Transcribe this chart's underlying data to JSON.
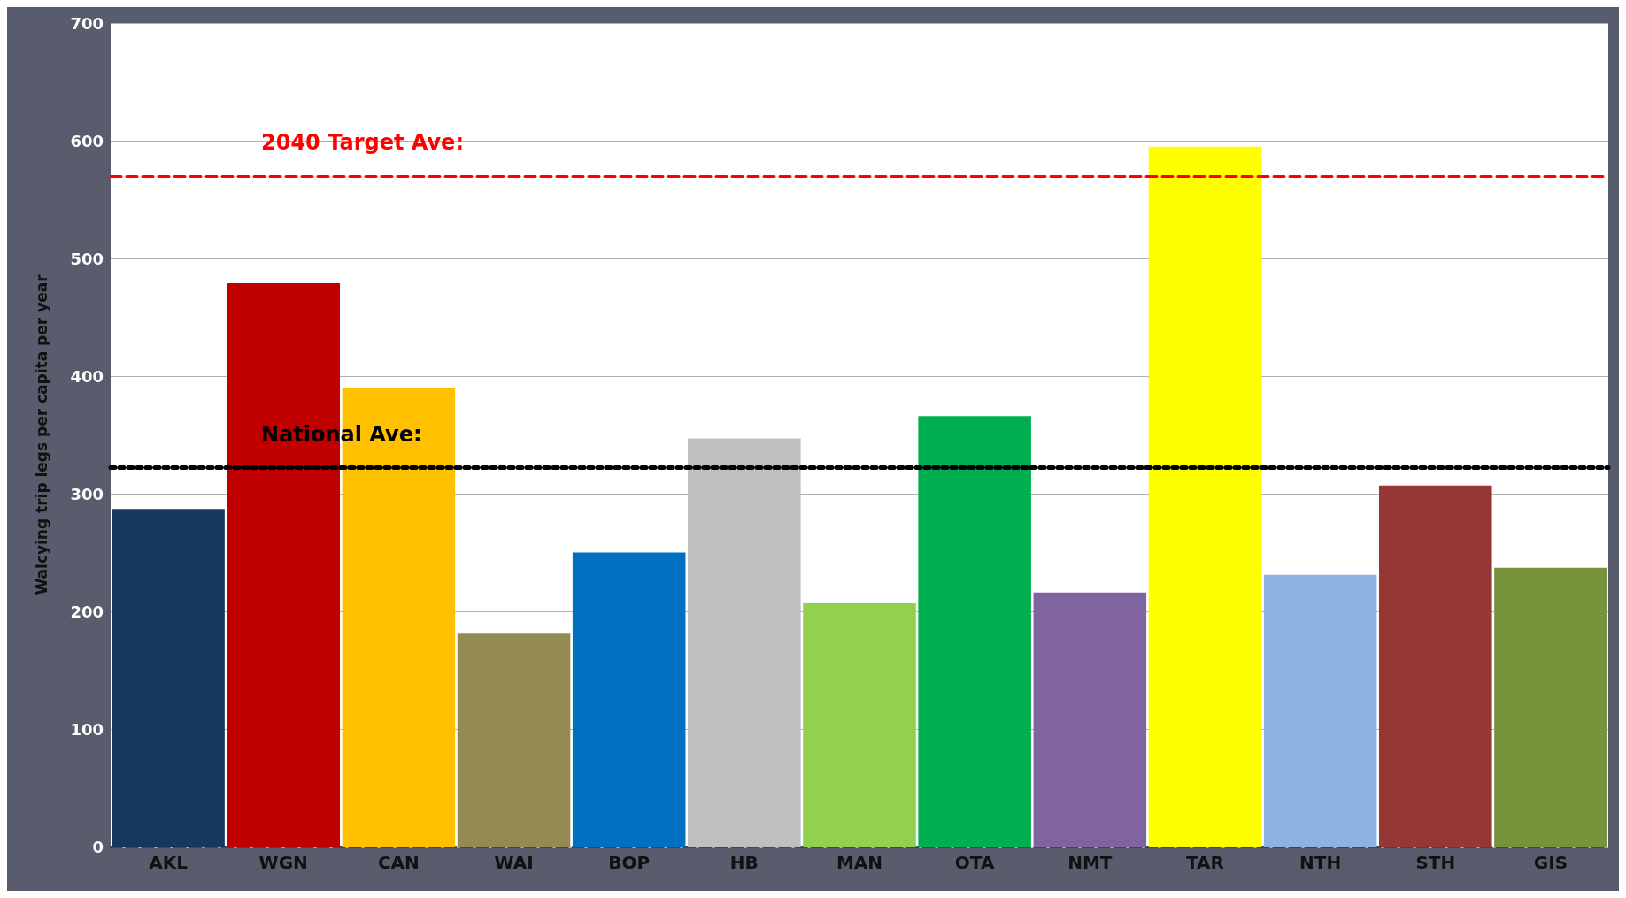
{
  "chart_data": {
    "type": "bar",
    "ylabel": "Walcying trip legs per capita per year",
    "categories": [
      "AKL",
      "WGN",
      "CAN",
      "WAI",
      "BOP",
      "HB",
      "MAN",
      "OTA",
      "NMT",
      "TAR",
      "NTH",
      "STH",
      "GIS"
    ],
    "values": [
      287,
      479,
      390,
      181,
      250,
      347,
      207,
      366,
      216,
      595,
      231,
      307,
      237
    ],
    "colors": [
      "#17375e",
      "#c00000",
      "#ffc000",
      "#948a54",
      "#0070c0",
      "#bfbfbf",
      "#92d050",
      "#00b050",
      "#8064a2",
      "#ffff00",
      "#8db3e2",
      "#953735",
      "#77933c"
    ],
    "ylim": [
      0,
      700
    ],
    "yticks": [
      0,
      100,
      200,
      300,
      400,
      500,
      600,
      700
    ],
    "grid": "y",
    "ref_lines": [
      {
        "axis": "y",
        "value": 322,
        "label": "National Ave:",
        "color": "#000000",
        "line_style": "dotted"
      },
      {
        "axis": "y",
        "value": 570,
        "label": "2040 Target Ave:",
        "color": "#ff0000",
        "line_style": "dashed"
      }
    ]
  }
}
